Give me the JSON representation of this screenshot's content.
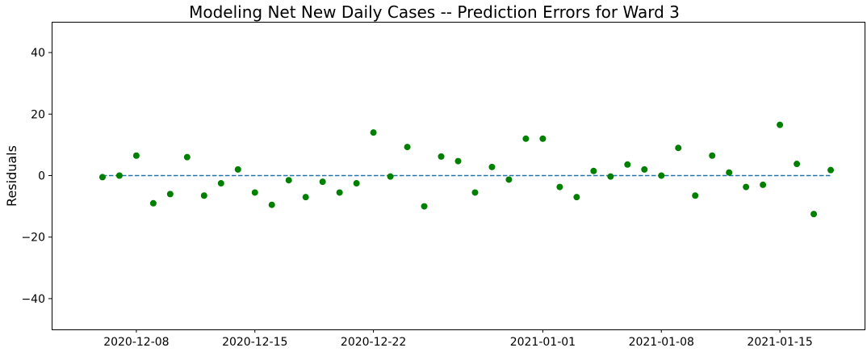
{
  "chart_data": {
    "type": "scatter",
    "title": "Modeling Net New Daily Cases -- Prediction Errors for Ward 3",
    "xlabel": "",
    "ylabel": "Residuals",
    "ylim": [
      -50,
      50
    ],
    "xlim": [
      "2020-12-03",
      "2021-01-20"
    ],
    "x_ticks": [
      "2020-12-08",
      "2020-12-15",
      "2020-12-22",
      "2021-01-01",
      "2021-01-08",
      "2021-01-15"
    ],
    "y_ticks": [
      -40,
      -20,
      0,
      20,
      40
    ],
    "y_tick_labels": [
      "−40",
      "−20",
      "0",
      "20",
      "40"
    ],
    "grid": false,
    "series": [
      {
        "color": "#008000",
        "marker": "circle",
        "x": [
          "2020-12-06",
          "2020-12-07",
          "2020-12-08",
          "2020-12-09",
          "2020-12-10",
          "2020-12-11",
          "2020-12-12",
          "2020-12-13",
          "2020-12-14",
          "2020-12-15",
          "2020-12-16",
          "2020-12-17",
          "2020-12-18",
          "2020-12-19",
          "2020-12-20",
          "2020-12-21",
          "2020-12-22",
          "2020-12-23",
          "2020-12-24",
          "2020-12-25",
          "2020-12-26",
          "2020-12-27",
          "2020-12-28",
          "2020-12-29",
          "2020-12-30",
          "2020-12-31",
          "2021-01-01",
          "2021-01-02",
          "2021-01-03",
          "2021-01-04",
          "2021-01-05",
          "2021-01-06",
          "2021-01-07",
          "2021-01-08",
          "2021-01-09",
          "2021-01-10",
          "2021-01-11",
          "2021-01-12",
          "2021-01-13",
          "2021-01-14",
          "2021-01-15",
          "2021-01-16",
          "2021-01-17",
          "2021-01-18"
        ],
        "y": [
          -0.5,
          0,
          6.5,
          -9,
          -6,
          6,
          -6.5,
          -2.5,
          2,
          -5.5,
          -9.5,
          -1.5,
          -7,
          -2,
          -5.5,
          -2.5,
          14,
          -0.3,
          9.3,
          -10,
          6.2,
          4.7,
          -5.5,
          2.8,
          -1.3,
          12,
          12,
          -3.7,
          -7,
          1.5,
          -0.3,
          3.6,
          2,
          0,
          9,
          -6.5,
          6.5,
          1,
          -3.7,
          -3,
          16.5,
          3.8,
          -12.5,
          1.8
        ]
      }
    ],
    "reference_line": {
      "y": 0,
      "x_from": "2020-12-06",
      "x_to": "2021-01-18",
      "style": "dashed",
      "color": "#1f77b4"
    }
  }
}
